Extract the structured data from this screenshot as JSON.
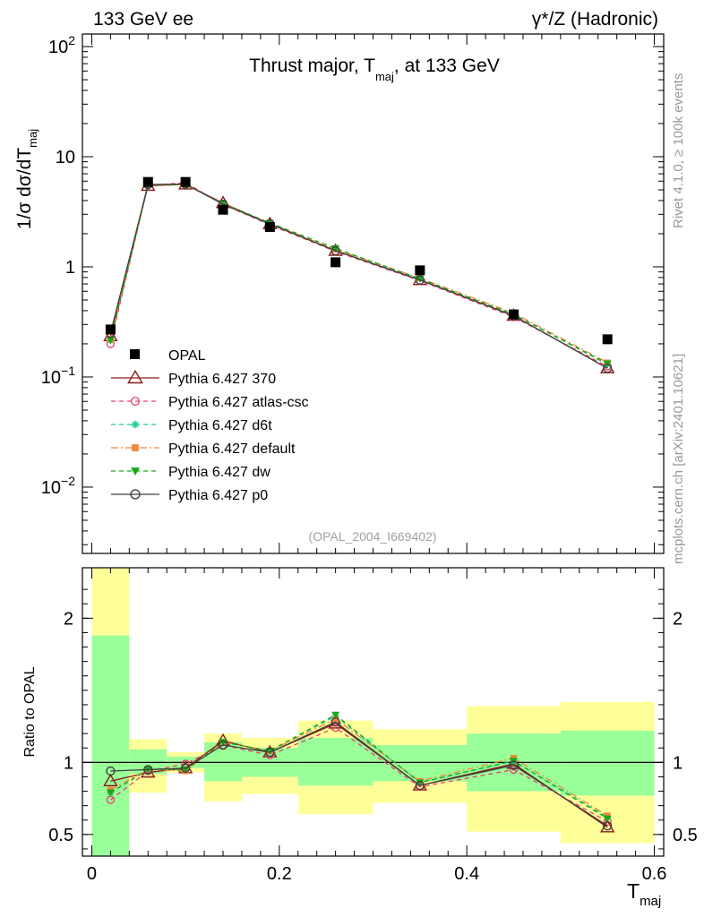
{
  "header": {
    "left_label": "133 GeV ee",
    "right_label": "γ*/Z (Hadronic)"
  },
  "side_labels": {
    "rivet": "Rivet 4.1.0, ≥ 100k events",
    "mcplots": "mcplots.cern.ch [arXiv:2401.10621]"
  },
  "colors": {
    "data": "#000000",
    "p370": "#8b1a1a",
    "atlas": "#e8406a",
    "d6t": "#20c89a",
    "default": "#f08838",
    "dw": "#18a818",
    "p0": "#404040",
    "band_inner": "#99ff99",
    "band_outer": "#ffff99"
  },
  "chart_data": [
    {
      "type": "line",
      "title": "Thrust major, T_maj, at 133 GeV",
      "title_parts": {
        "main": "Thrust major, T",
        "sub": "maj",
        "rest": ", at 133 GeV"
      },
      "ylabel_parts": {
        "main": "1/σ  dσ/dT",
        "sub": "maj"
      },
      "yscale": "log",
      "ylim": [
        0.0025,
        130
      ],
      "xlim": [
        -0.01,
        0.61
      ],
      "y_ticks": [
        {
          "value": 100,
          "base": "10",
          "exp": "2"
        },
        {
          "value": 10,
          "base": "10",
          "exp": ""
        },
        {
          "value": 1,
          "base": "1",
          "exp": ""
        },
        {
          "value": 0.1,
          "base": "10",
          "exp": "−1"
        },
        {
          "value": 0.01,
          "base": "10",
          "exp": "−2"
        }
      ],
      "x": [
        0.02,
        0.06,
        0.1,
        0.14,
        0.19,
        0.26,
        0.35,
        0.45,
        0.55
      ],
      "bin_edges": [
        0.0,
        0.04,
        0.08,
        0.12,
        0.16,
        0.22,
        0.3,
        0.4,
        0.5,
        0.6
      ],
      "data_series": {
        "name": "OPAL",
        "values": [
          0.27,
          5.9,
          5.9,
          3.3,
          2.3,
          1.1,
          0.93,
          0.37,
          0.22
        ]
      },
      "series": [
        {
          "name": "Pythia 6.427 370",
          "key": "p370",
          "values": [
            0.235,
            5.45,
            5.6,
            3.8,
            2.45,
            1.4,
            0.76,
            0.36,
            0.12
          ]
        },
        {
          "name": "Pythia 6.427 atlas-csc",
          "key": "atlas",
          "values": [
            0.2,
            5.5,
            5.8,
            3.7,
            2.4,
            1.38,
            0.75,
            0.35,
            0.125
          ]
        },
        {
          "name": "Pythia 6.427 d6t",
          "key": "d6t",
          "values": [
            0.215,
            5.55,
            5.6,
            3.75,
            2.5,
            1.46,
            0.78,
            0.37,
            0.13
          ]
        },
        {
          "name": "Pythia 6.427 default",
          "key": "default",
          "values": [
            0.22,
            5.6,
            5.55,
            3.75,
            2.48,
            1.44,
            0.79,
            0.38,
            0.135
          ]
        },
        {
          "name": "Pythia 6.427 dw",
          "key": "dw",
          "values": [
            0.215,
            5.55,
            5.6,
            3.75,
            2.5,
            1.47,
            0.78,
            0.37,
            0.132
          ]
        },
        {
          "name": "Pythia 6.427 p0",
          "key": "p0",
          "values": [
            0.25,
            5.6,
            5.65,
            3.7,
            2.45,
            1.4,
            0.76,
            0.36,
            0.12
          ]
        }
      ],
      "watermark": "(OPAL_2004_I669402)",
      "legend_position": "lower-left"
    },
    {
      "type": "line",
      "ylabel": "Ratio to OPAL",
      "ylim": [
        0.35,
        2.35
      ],
      "xlim": [
        -0.01,
        0.61
      ],
      "xlabel_parts": {
        "main": "T",
        "sub": "maj"
      },
      "y_ticks": [
        0.5,
        1,
        2
      ],
      "y_tick_labels": [
        "0.5",
        "1",
        "2"
      ],
      "x_ticks": [
        0,
        0.2,
        0.4,
        0.6
      ],
      "x_tick_labels": [
        "0",
        "0.2",
        "0.4",
        "0.6"
      ],
      "bands": [
        {
          "x0": 0.0,
          "x1": 0.04,
          "inner": [
            0.35,
            1.88
          ],
          "outer": [
            0.35,
            2.35
          ]
        },
        {
          "x0": 0.04,
          "x1": 0.08,
          "inner": [
            0.92,
            1.09
          ],
          "outer": [
            0.79,
            1.16
          ]
        },
        {
          "x0": 0.08,
          "x1": 0.12,
          "inner": [
            0.96,
            1.04
          ],
          "outer": [
            0.93,
            1.07
          ]
        },
        {
          "x0": 0.12,
          "x1": 0.16,
          "inner": [
            0.87,
            1.14
          ],
          "outer": [
            0.73,
            1.2
          ]
        },
        {
          "x0": 0.16,
          "x1": 0.22,
          "inner": [
            0.9,
            1.1
          ],
          "outer": [
            0.78,
            1.17
          ]
        },
        {
          "x0": 0.22,
          "x1": 0.3,
          "inner": [
            0.84,
            1.17
          ],
          "outer": [
            0.64,
            1.29
          ]
        },
        {
          "x0": 0.3,
          "x1": 0.4,
          "inner": [
            0.87,
            1.12
          ],
          "outer": [
            0.72,
            1.23
          ]
        },
        {
          "x0": 0.4,
          "x1": 0.5,
          "inner": [
            0.8,
            1.2
          ],
          "outer": [
            0.52,
            1.39
          ]
        },
        {
          "x0": 0.5,
          "x1": 0.6,
          "inner": [
            0.77,
            1.22
          ],
          "outer": [
            0.44,
            1.42
          ]
        }
      ],
      "series": [
        {
          "name": "Pythia 6.427 370",
          "key": "p370",
          "values": [
            0.87,
            0.93,
            0.96,
            1.15,
            1.07,
            1.27,
            0.84,
            0.99,
            0.55
          ]
        },
        {
          "name": "Pythia 6.427 atlas-csc",
          "key": "atlas",
          "values": [
            0.74,
            0.94,
            0.99,
            1.12,
            1.05,
            1.24,
            0.83,
            0.95,
            0.59
          ]
        },
        {
          "name": "Pythia 6.427 d6t",
          "key": "d6t",
          "values": [
            0.79,
            0.95,
            0.95,
            1.14,
            1.08,
            1.32,
            0.86,
            1.01,
            0.62
          ]
        },
        {
          "name": "Pythia 6.427 default",
          "key": "default",
          "values": [
            0.81,
            0.95,
            0.94,
            1.14,
            1.08,
            1.3,
            0.87,
            1.03,
            0.63
          ]
        },
        {
          "name": "Pythia 6.427 dw",
          "key": "dw",
          "values": [
            0.79,
            0.95,
            0.95,
            1.14,
            1.08,
            1.33,
            0.86,
            1.01,
            0.61
          ]
        },
        {
          "name": "Pythia 6.427 p0",
          "key": "p0",
          "values": [
            0.94,
            0.95,
            0.96,
            1.12,
            1.07,
            1.28,
            0.84,
            0.98,
            0.56
          ]
        }
      ]
    }
  ]
}
